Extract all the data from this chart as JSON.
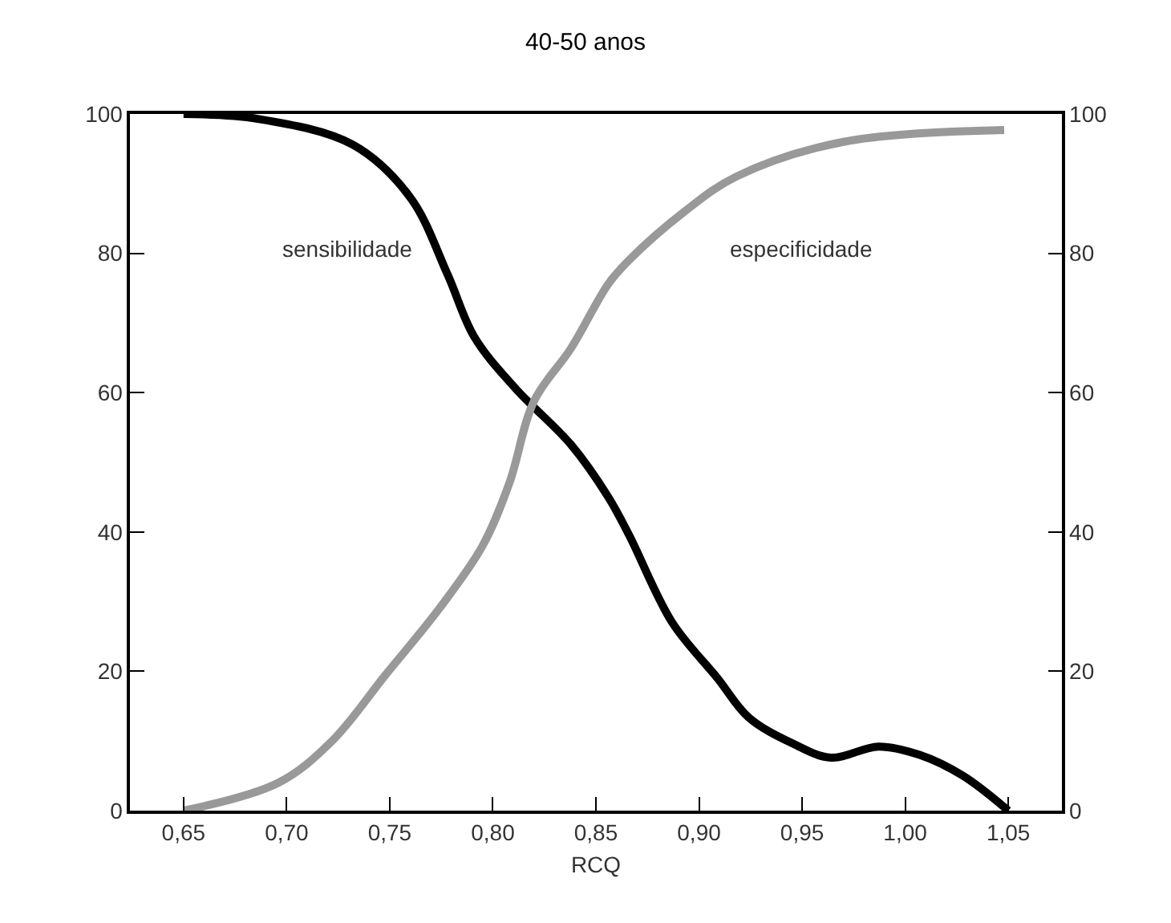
{
  "chart_data": {
    "type": "line",
    "title": "40-50 anos",
    "xlabel": "RCQ",
    "xlim": [
      0.624,
      1.076
    ],
    "xticks": [
      {
        "value": 0.65,
        "label": "0,65"
      },
      {
        "value": 0.7,
        "label": "0,70"
      },
      {
        "value": 0.75,
        "label": "0,75"
      },
      {
        "value": 0.8,
        "label": "0,80"
      },
      {
        "value": 0.85,
        "label": "0,85"
      },
      {
        "value": 0.9,
        "label": "0,90"
      },
      {
        "value": 0.95,
        "label": "0,95"
      },
      {
        "value": 1.0,
        "label": "1,00"
      },
      {
        "value": 1.05,
        "label": "1,05"
      }
    ],
    "ylim": [
      0,
      100
    ],
    "yticks": [
      0,
      20,
      40,
      60,
      80,
      100
    ],
    "y2lim": [
      0,
      100
    ],
    "y2ticks": [
      0,
      20,
      40,
      60,
      80,
      100
    ],
    "legend": false,
    "marker": "none",
    "line_style": "solid",
    "series": [
      {
        "name": "sensibilidade",
        "color": "#000000",
        "x": [
          0.65,
          0.686,
          0.732,
          0.76,
          0.778,
          0.791,
          0.811,
          0.838,
          0.856,
          0.866,
          0.887,
          0.909,
          0.924,
          0.945,
          0.964,
          0.987,
          1.007,
          1.028,
          1.05
        ],
        "values": [
          100,
          99.3,
          95.6,
          88,
          77,
          68,
          60.6,
          52.5,
          45,
          39.6,
          27,
          19,
          13.4,
          9.7,
          7.6,
          9.2,
          8,
          5,
          0
        ]
      },
      {
        "name": "especificidade",
        "color": "#999999",
        "x": [
          0.65,
          0.696,
          0.722,
          0.748,
          0.774,
          0.795,
          0.808,
          0.82,
          0.838,
          0.856,
          0.866,
          0.893,
          0.918,
          0.97,
          1.048
        ],
        "values": [
          0,
          4,
          10,
          19.5,
          29,
          38,
          47,
          58.8,
          66.4,
          75.6,
          79,
          86,
          91,
          96,
          97.7
        ]
      }
    ]
  }
}
